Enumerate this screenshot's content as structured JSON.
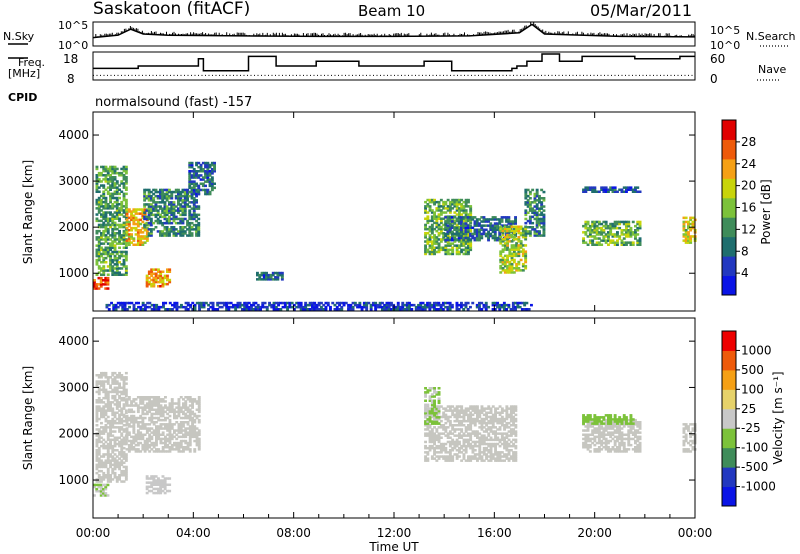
{
  "header": {
    "station": "Saskatoon (fitACF)",
    "beam": "Beam 10",
    "date": "05/Mar/2011"
  },
  "left_labels": {
    "nsky": "N.Sky",
    "freq_line1": "Freq.",
    "freq_line2": "[MHz]",
    "cpid": "CPID"
  },
  "right_labels": {
    "nsearch": "N.Search",
    "nave": "Nave"
  },
  "noise_axis": {
    "left_ticks": [
      "10^5",
      "10^0"
    ],
    "right_ticks": [
      "10^5",
      "10^0"
    ]
  },
  "freq_axis": {
    "left_ticks": [
      "18",
      "8"
    ],
    "right_ticks": [
      "60",
      "0"
    ]
  },
  "cpid_text": "normalsound (fast) -157",
  "x_axis": {
    "label": "Time UT",
    "ticks": [
      "00:00",
      "04:00",
      "08:00",
      "12:00",
      "16:00",
      "20:00",
      "00:00"
    ]
  },
  "colors": {
    "power": [
      "#0a14e6",
      "#2238c0",
      "#1f6e6e",
      "#3f8c5a",
      "#7cc23a",
      "#c8d40a",
      "#f5a015",
      "#ee5a0a",
      "#e00000"
    ],
    "velocity": [
      "#ee0000",
      "#ee5a0a",
      "#f5a015",
      "#e6d26a",
      "#c8c8c8",
      "#7cc23a",
      "#3f8c5a",
      "#2238c0",
      "#0a14e6"
    ],
    "velocity_zero": "#c6c6c0"
  },
  "chart_data": [
    {
      "type": "heatmap",
      "title": "Power",
      "ylabel": "Slant Range [km]",
      "xlabel": "",
      "xlim": [
        0,
        24
      ],
      "ylim": [
        180,
        4500
      ],
      "yticks": [
        1000,
        2000,
        3000,
        4000
      ],
      "colorbar": {
        "label": "Power [dB]",
        "ticks": [
          "4",
          "8",
          "12",
          "16",
          "20",
          "24",
          "28"
        ],
        "range": [
          0,
          30
        ]
      },
      "regions": [
        {
          "t": [
            0.0,
            0.6
          ],
          "r": [
            650,
            900
          ],
          "value": 26
        },
        {
          "t": [
            0.1,
            1.3
          ],
          "r": [
            950,
            3300
          ],
          "value": 12
        },
        {
          "t": [
            1.3,
            2.2
          ],
          "r": [
            1600,
            2400
          ],
          "value": 20
        },
        {
          "t": [
            2.0,
            4.2
          ],
          "r": [
            1800,
            2800
          ],
          "value": 10
        },
        {
          "t": [
            2.1,
            3.0
          ],
          "r": [
            700,
            1100
          ],
          "value": 22
        },
        {
          "t": [
            3.8,
            4.8
          ],
          "r": [
            2700,
            3400
          ],
          "value": 8
        },
        {
          "t": [
            6.5,
            7.5
          ],
          "r": [
            850,
            1000
          ],
          "value": 8
        },
        {
          "t": [
            13.2,
            15.0
          ],
          "r": [
            1400,
            2600
          ],
          "value": 14
        },
        {
          "t": [
            14.0,
            16.8
          ],
          "r": [
            1700,
            2200
          ],
          "value": 8
        },
        {
          "t": [
            16.2,
            17.2
          ],
          "r": [
            1000,
            2000
          ],
          "value": 16
        },
        {
          "t": [
            17.2,
            18.0
          ],
          "r": [
            1800,
            2800
          ],
          "value": 10
        },
        {
          "t": [
            19.5,
            21.8
          ],
          "r": [
            1600,
            2100
          ],
          "value": 14
        },
        {
          "t": [
            19.5,
            21.8
          ],
          "r": [
            2750,
            2850
          ],
          "value": 6
        },
        {
          "t": [
            23.5,
            24.0
          ],
          "r": [
            1600,
            2200
          ],
          "value": 18
        },
        {
          "t": [
            0.5,
            17.5
          ],
          "r": [
            200,
            380
          ],
          "value": 4
        }
      ]
    },
    {
      "type": "heatmap",
      "title": "Velocity",
      "ylabel": "Slant Range [km]",
      "xlabel": "Time UT",
      "xlim": [
        0,
        24
      ],
      "ylim": [
        180,
        4500
      ],
      "yticks": [
        1000,
        2000,
        3000,
        4000
      ],
      "colorbar": {
        "label": "Velocity [m s⁻¹]",
        "ticks": [
          "1000",
          "500",
          "100",
          "25",
          "-25",
          "-100",
          "-500",
          "-1000"
        ],
        "range": [
          -1200,
          1200
        ]
      },
      "regions": [
        {
          "t": [
            0.0,
            0.6
          ],
          "r": [
            650,
            900
          ],
          "value": 150
        },
        {
          "t": [
            0.1,
            1.3
          ],
          "r": [
            950,
            3300
          ],
          "value": 0
        },
        {
          "t": [
            1.3,
            4.2
          ],
          "r": [
            1600,
            2800
          ],
          "value": 0
        },
        {
          "t": [
            2.1,
            3.0
          ],
          "r": [
            700,
            1100
          ],
          "value": 120
        },
        {
          "t": [
            13.2,
            16.8
          ],
          "r": [
            1400,
            2600
          ],
          "value": 0
        },
        {
          "t": [
            13.2,
            13.8
          ],
          "r": [
            2200,
            3000
          ],
          "value": 150
        },
        {
          "t": [
            19.5,
            21.8
          ],
          "r": [
            1600,
            2300
          ],
          "value": 0
        },
        {
          "t": [
            19.5,
            21.5
          ],
          "r": [
            2200,
            2400
          ],
          "value": 300
        },
        {
          "t": [
            23.5,
            24.0
          ],
          "r": [
            1600,
            2200
          ],
          "value": 0
        }
      ]
    }
  ],
  "noise_series": {
    "nsky": [
      [
        0,
        0.35
      ],
      [
        1,
        0.45
      ],
      [
        1.5,
        0.7
      ],
      [
        2,
        0.5
      ],
      [
        3,
        0.45
      ],
      [
        6,
        0.42
      ],
      [
        9,
        0.4
      ],
      [
        12,
        0.4
      ],
      [
        15,
        0.42
      ],
      [
        17,
        0.55
      ],
      [
        17.5,
        0.9
      ],
      [
        18,
        0.5
      ],
      [
        21,
        0.4
      ],
      [
        24,
        0.38
      ]
    ],
    "freq_mhz": [
      [
        0,
        12
      ],
      [
        1.8,
        12
      ],
      [
        1.8,
        13
      ],
      [
        4.2,
        13
      ],
      [
        4.2,
        16
      ],
      [
        4.4,
        16
      ],
      [
        4.4,
        11
      ],
      [
        6.2,
        11
      ],
      [
        6.2,
        17
      ],
      [
        7.3,
        17
      ],
      [
        7.3,
        13
      ],
      [
        8.9,
        13
      ],
      [
        8.9,
        15
      ],
      [
        10.6,
        15
      ],
      [
        10.6,
        13
      ],
      [
        13.2,
        13
      ],
      [
        13.2,
        15
      ],
      [
        14.3,
        15
      ],
      [
        14.3,
        11
      ],
      [
        16.7,
        11
      ],
      [
        16.7,
        12
      ],
      [
        16.9,
        12
      ],
      [
        16.9,
        13
      ],
      [
        17.3,
        13
      ],
      [
        17.3,
        15
      ],
      [
        17.9,
        15
      ],
      [
        17.9,
        18
      ],
      [
        18.6,
        18
      ],
      [
        18.6,
        15
      ],
      [
        19.5,
        15
      ],
      [
        19.5,
        17
      ],
      [
        21.6,
        17
      ],
      [
        21.6,
        16
      ],
      [
        23.4,
        16
      ],
      [
        23.4,
        17
      ],
      [
        24,
        17
      ]
    ],
    "nave_dotted": 10
  }
}
